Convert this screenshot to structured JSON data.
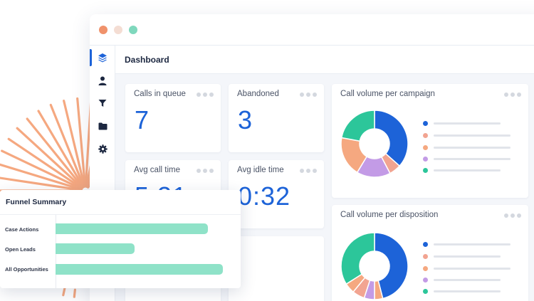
{
  "window": {
    "controls": [
      {
        "name": "close",
        "color": "#f0926b"
      },
      {
        "name": "minimize",
        "color": "#f4ddd3"
      },
      {
        "name": "maximize",
        "color": "#7fd8bd"
      }
    ]
  },
  "sidebar": {
    "items": [
      {
        "icon": "layers-icon",
        "active": true
      },
      {
        "icon": "user-icon",
        "active": false
      },
      {
        "icon": "filter-icon",
        "active": false
      },
      {
        "icon": "folder-icon",
        "active": false
      },
      {
        "icon": "gear-icon",
        "active": false
      }
    ]
  },
  "header": {
    "title": "Dashboard"
  },
  "stats": {
    "calls_in_queue": {
      "label": "Calls in queue",
      "value": "7"
    },
    "abandoned": {
      "label": "Abandoned",
      "value": "3"
    },
    "avg_call_time": {
      "label": "Avg call time",
      "value": "5:31"
    },
    "avg_idle_time": {
      "label": "Avg idle time",
      "value": "0:32"
    }
  },
  "charts": {
    "campaign": {
      "title": "Call volume per campaign"
    },
    "disposition": {
      "title": "Call volume per disposition"
    }
  },
  "funnel": {
    "title": "Funnel Summary",
    "rows": [
      {
        "label": "Case Actions",
        "value": 0.83
      },
      {
        "label": "Open Leads",
        "value": 0.43
      },
      {
        "label": "All Opportunities",
        "value": 0.91
      }
    ]
  },
  "chart_data": [
    {
      "type": "pie",
      "title": "Call volume per campaign",
      "values": [
        38,
        6,
        17,
        20,
        23
      ],
      "colors": [
        "#1d63d8",
        "#f2a491",
        "#c39be6",
        "#f5a880",
        "#2cc69a"
      ]
    },
    {
      "type": "pie",
      "title": "Call volume per disposition",
      "values": [
        46,
        4,
        5,
        6,
        5,
        34
      ],
      "colors": [
        "#1d63d8",
        "#f5a880",
        "#c39be6",
        "#f2a491",
        "#f5a880",
        "#2cc69a"
      ]
    }
  ],
  "colors": {
    "accent": "#1d63d8",
    "rays": "#f5a880",
    "funnel_bar": "#8fe2c8",
    "legend": [
      "#1d63d8",
      "#f2a491",
      "#f5a880",
      "#c39be6",
      "#2cc69a"
    ]
  }
}
